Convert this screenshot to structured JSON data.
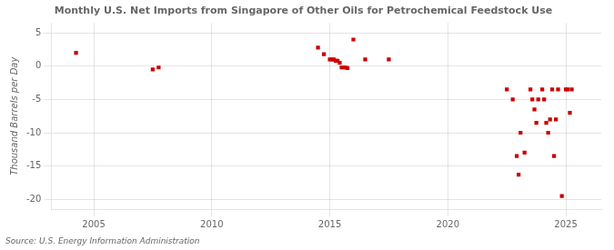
{
  "chart_data": {
    "type": "scatter",
    "title": "Monthly U.S. Net Imports from Singapore of Other Oils for Petrochemical Feedstock Use",
    "ylabel": "Thousand Barrels per Day",
    "annotations": [
      "Source: U.S. Energy Information Administration"
    ],
    "color": "#cc0000",
    "marker": "square",
    "grid": true,
    "xlim": [
      2003.2,
      2026.5
    ],
    "ylim": [
      -21.5,
      6.5
    ],
    "xticks": [
      2005,
      2010,
      2015,
      2020,
      2025
    ],
    "yticks": [
      5,
      0,
      -5,
      -10,
      -15,
      -20
    ],
    "x": [
      2004.25,
      2007.5,
      2007.75,
      2014.5,
      2014.75,
      2015.0,
      2015.08,
      2015.17,
      2015.25,
      2015.33,
      2015.42,
      2015.5,
      2015.58,
      2015.67,
      2015.75,
      2016.0,
      2016.5,
      2017.5,
      2022.5,
      2022.75,
      2022.92,
      2023.0,
      2023.08,
      2023.25,
      2023.5,
      2023.58,
      2023.67,
      2023.75,
      2023.83,
      2024.0,
      2024.08,
      2024.17,
      2024.25,
      2024.33,
      2024.42,
      2024.5,
      2024.58,
      2024.67,
      2024.83,
      2025.0,
      2025.08,
      2025.17,
      2025.25
    ],
    "values": [
      2.0,
      -0.5,
      -0.2,
      2.8,
      1.8,
      1.0,
      1.0,
      1.0,
      0.8,
      0.8,
      0.5,
      -0.2,
      -0.2,
      -0.2,
      -0.3,
      4.0,
      1.0,
      1.0,
      -3.5,
      -5.0,
      -13.5,
      -16.3,
      -10.0,
      -13.0,
      -3.5,
      -5.0,
      -6.5,
      -8.5,
      -5.0,
      -3.5,
      -5.0,
      -8.5,
      -10.0,
      -8.0,
      -3.5,
      -13.5,
      -8.0,
      -3.5,
      -19.5,
      -3.5,
      -3.5,
      -7.0,
      -3.5
    ]
  }
}
